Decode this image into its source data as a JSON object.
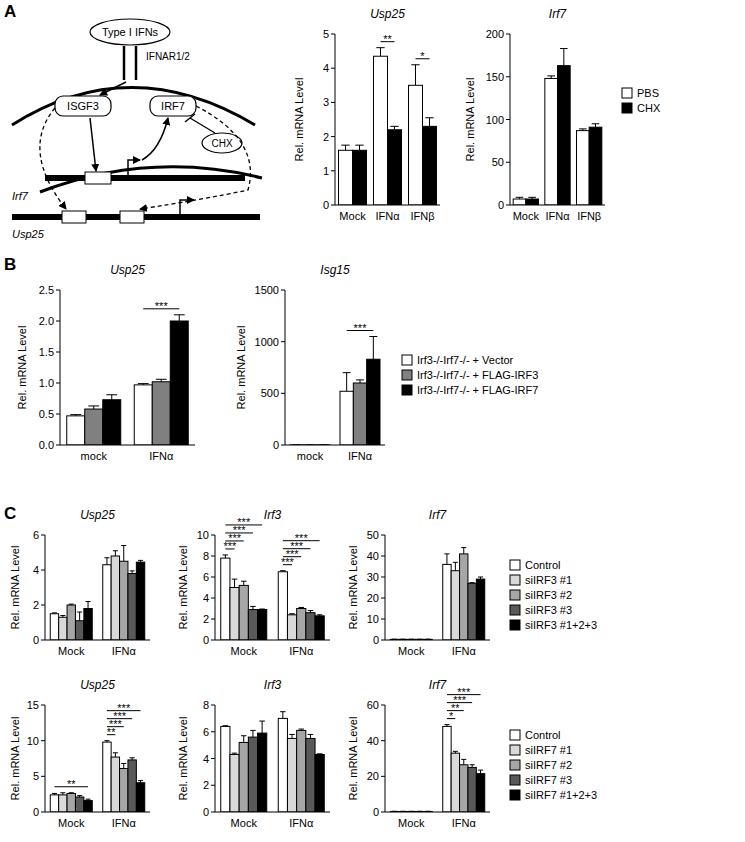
{
  "panels": [
    "A",
    "B",
    "C"
  ],
  "diagram": {
    "nodes": [
      {
        "label": "Type I IFNs"
      },
      {
        "label": "IFNAR1/2"
      },
      {
        "label": "ISGF3"
      },
      {
        "label": "IRF7"
      },
      {
        "label": "CHX"
      },
      {
        "label": "Irf7"
      },
      {
        "label": "Usp25"
      }
    ]
  },
  "chart_data": [
    {
      "type": "bar",
      "title": "Usp25",
      "y_label": "Rel. mRNA Level",
      "categories": [
        "Mock",
        "IFNα",
        "IFNβ"
      ],
      "series": [
        {
          "color": "#ffffff",
          "values": [
            1.6,
            4.35,
            3.5
          ],
          "errors": [
            0.15,
            0.25,
            0.6
          ]
        },
        {
          "color": "#000000",
          "values": [
            1.6,
            2.2,
            2.3
          ],
          "errors": [
            0.15,
            0.1,
            0.25
          ]
        }
      ],
      "ylim": [
        0,
        5
      ],
      "yticks": [
        0,
        1,
        2,
        3,
        4,
        5
      ],
      "annotations": [
        {
          "text": "**",
          "category": 1,
          "between": [
            0,
            1
          ]
        },
        {
          "text": "*",
          "category": 2,
          "between": [
            0,
            1
          ]
        }
      ]
    },
    {
      "type": "bar",
      "title": "Irf7",
      "y_label": "Rel. mRNA Level",
      "categories": [
        "Mock",
        "IFNα",
        "IFNβ"
      ],
      "series": [
        {
          "name": "PBS",
          "color": "#ffffff",
          "values": [
            7,
            148,
            87
          ],
          "errors": [
            2,
            3,
            2
          ]
        },
        {
          "name": "CHX",
          "color": "#000000",
          "values": [
            7,
            163,
            91
          ],
          "errors": [
            2,
            20,
            4
          ]
        }
      ],
      "ylim": [
        0,
        200
      ],
      "yticks": [
        0,
        50,
        100,
        150,
        200
      ],
      "legend": "right"
    },
    {
      "type": "bar",
      "title": "Usp25",
      "y_label": "Rel. mRNA Level",
      "categories": [
        "mock",
        "IFNα"
      ],
      "series": [
        {
          "color": "#ffffff",
          "values": [
            0.47,
            0.97
          ],
          "errors": [
            0.02,
            0.02
          ]
        },
        {
          "color": "#808080",
          "values": [
            0.58,
            1.02
          ],
          "errors": [
            0.05,
            0.04
          ]
        },
        {
          "color": "#000000",
          "values": [
            0.73,
            2.0
          ],
          "errors": [
            0.08,
            0.1
          ]
        }
      ],
      "ylim": [
        0,
        2.5
      ],
      "yticks": [
        {
          "value": 0,
          "label": "0.0"
        },
        0.5,
        {
          "value": 1,
          "label": "1.0"
        },
        1.5,
        {
          "value": 2,
          "label": "2.0"
        },
        2.5
      ],
      "annotations": [
        {
          "text": "***",
          "category": 1,
          "between": [
            0,
            2
          ]
        }
      ]
    },
    {
      "type": "bar",
      "title": "Isg15",
      "y_label": "Rel. mRNA Level",
      "categories": [
        "mock",
        "IFNα"
      ],
      "series": [
        {
          "name": "Irf3-/-Irf7-/- + Vector",
          "color": "#ffffff",
          "values": [
            1,
            520
          ],
          "errors": [
            0,
            180
          ]
        },
        {
          "name": "Irf3-/-Irf7-/- + FLAG-IRF3",
          "color": "#808080",
          "values": [
            1,
            600
          ],
          "errors": [
            0,
            30
          ]
        },
        {
          "name": "Irf3-/-Irf7-/- + FLAG-IRF7",
          "color": "#000000",
          "values": [
            1,
            830
          ],
          "errors": [
            0,
            220
          ]
        }
      ],
      "ylim": [
        0,
        1500
      ],
      "yticks": [
        0,
        500,
        1000,
        1500
      ],
      "legend": "right",
      "annotations": [
        {
          "text": "***",
          "category": 1,
          "between": [
            0,
            2
          ]
        }
      ]
    },
    {
      "type": "bar",
      "title": "Usp25",
      "y_label": "Rel. mRNA Level",
      "categories": [
        "Mock",
        "IFNα"
      ],
      "series": [
        {
          "color": "#ffffff",
          "values": [
            1.5,
            4.3
          ],
          "errors": [
            0.05,
            0.4
          ]
        },
        {
          "color": "#d9d9d9",
          "values": [
            1.3,
            4.8
          ],
          "errors": [
            0.1,
            0.3
          ]
        },
        {
          "color": "#a6a6a6",
          "values": [
            2.0,
            4.5
          ],
          "errors": [
            0.05,
            0.9
          ]
        },
        {
          "color": "#595959",
          "values": [
            1.1,
            3.8
          ],
          "errors": [
            0.5,
            0.15
          ]
        },
        {
          "color": "#000000",
          "values": [
            1.8,
            4.45
          ],
          "errors": [
            0.4,
            0.1
          ]
        }
      ],
      "ylim": [
        0,
        6
      ],
      "yticks": [
        0,
        2,
        4,
        6
      ]
    },
    {
      "type": "bar",
      "title": "Irf3",
      "y_label": "Rel. mRNA Level",
      "categories": [
        "Mock",
        "IFNα"
      ],
      "series": [
        {
          "color": "#ffffff",
          "values": [
            7.8,
            6.5
          ],
          "errors": [
            0.3,
            0.1
          ]
        },
        {
          "color": "#d9d9d9",
          "values": [
            5.0,
            2.4
          ],
          "errors": [
            0.8,
            0.1
          ]
        },
        {
          "color": "#a6a6a6",
          "values": [
            5.2,
            3.0
          ],
          "errors": [
            0.4,
            0.1
          ]
        },
        {
          "color": "#595959",
          "values": [
            2.9,
            2.6
          ],
          "errors": [
            0.3,
            0.2
          ]
        },
        {
          "color": "#000000",
          "values": [
            2.9,
            2.3
          ],
          "errors": [
            0.05,
            0.1
          ]
        }
      ],
      "ylim": [
        0,
        10
      ],
      "yticks": [
        0,
        2,
        4,
        6,
        8,
        10
      ],
      "annotations": [
        {
          "text": "***",
          "category": 0,
          "between": [
            0,
            1
          ]
        },
        {
          "text": "***",
          "category": 0,
          "between": [
            0,
            2
          ]
        },
        {
          "text": "***",
          "category": 0,
          "between": [
            0,
            3
          ]
        },
        {
          "text": "***",
          "category": 0,
          "between": [
            0,
            4
          ]
        },
        {
          "text": "***",
          "category": 1,
          "between": [
            0,
            1
          ]
        },
        {
          "text": "***",
          "category": 1,
          "between": [
            0,
            2
          ]
        },
        {
          "text": "***",
          "category": 1,
          "between": [
            0,
            3
          ]
        },
        {
          "text": "***",
          "category": 1,
          "between": [
            0,
            4
          ]
        }
      ]
    },
    {
      "type": "bar",
      "title": "Irf7",
      "y_label": "Rel. mRNA Level",
      "categories": [
        "Mock",
        "IFNα"
      ],
      "series": [
        {
          "name": "Control",
          "color": "#ffffff",
          "values": [
            0.3,
            36
          ],
          "errors": [
            0.1,
            5
          ]
        },
        {
          "name": "siIRF3 #1",
          "color": "#d9d9d9",
          "values": [
            0.3,
            33
          ],
          "errors": [
            0.1,
            4
          ]
        },
        {
          "name": "siIRF3 #2",
          "color": "#a6a6a6",
          "values": [
            0.3,
            41
          ],
          "errors": [
            0.1,
            3
          ]
        },
        {
          "name": "siIRF3 #3",
          "color": "#595959",
          "values": [
            0.3,
            27
          ],
          "errors": [
            0.1,
            0.3
          ]
        },
        {
          "name": "siIRF3 #1+2+3",
          "color": "#000000",
          "values": [
            0.3,
            29
          ],
          "errors": [
            0.1,
            1
          ]
        }
      ],
      "ylim": [
        0,
        50
      ],
      "yticks": [
        0,
        10,
        20,
        30,
        40,
        50
      ],
      "legend": "right"
    },
    {
      "type": "bar",
      "title": "Usp25",
      "y_label": "Rel. mRNA Level",
      "categories": [
        "Mock",
        "IFNα"
      ],
      "series": [
        {
          "color": "#ffffff",
          "values": [
            2.4,
            9.8
          ],
          "errors": [
            0.2,
            0.2
          ]
        },
        {
          "color": "#d9d9d9",
          "values": [
            2.4,
            7.7
          ],
          "errors": [
            0.3,
            0.6
          ]
        },
        {
          "color": "#a6a6a6",
          "values": [
            2.6,
            6.1
          ],
          "errors": [
            0.1,
            0.7
          ]
        },
        {
          "color": "#595959",
          "values": [
            2.1,
            7.3
          ],
          "errors": [
            0.2,
            0.3
          ]
        },
        {
          "color": "#000000",
          "values": [
            1.6,
            4.1
          ],
          "errors": [
            0.2,
            0.3
          ]
        }
      ],
      "ylim": [
        0,
        15
      ],
      "yticks": [
        0,
        5,
        10,
        15
      ],
      "annotations": [
        {
          "text": "**",
          "category": 0,
          "between": [
            0,
            4
          ]
        },
        {
          "text": "**",
          "category": 1,
          "between": [
            0,
            1
          ]
        },
        {
          "text": "***",
          "category": 1,
          "between": [
            0,
            2
          ]
        },
        {
          "text": "***",
          "category": 1,
          "between": [
            0,
            3
          ]
        },
        {
          "text": "***",
          "category": 1,
          "between": [
            0,
            4
          ]
        }
      ]
    },
    {
      "type": "bar",
      "title": "Irf3",
      "y_label": "Rel. mRNA Level",
      "categories": [
        "Mock",
        "IFNα"
      ],
      "series": [
        {
          "color": "#ffffff",
          "values": [
            6.4,
            7.0
          ],
          "errors": [
            0.05,
            0.5
          ]
        },
        {
          "color": "#d9d9d9",
          "values": [
            4.3,
            5.5
          ],
          "errors": [
            0.1,
            0.3
          ]
        },
        {
          "color": "#a6a6a6",
          "values": [
            5.2,
            6.1
          ],
          "errors": [
            0.5,
            0.1
          ]
        },
        {
          "color": "#595959",
          "values": [
            5.6,
            5.5
          ],
          "errors": [
            0.5,
            0.3
          ]
        },
        {
          "color": "#000000",
          "values": [
            5.9,
            4.3
          ],
          "errors": [
            0.9,
            0.05
          ]
        }
      ],
      "ylim": [
        0,
        8
      ],
      "yticks": [
        0,
        2,
        4,
        6,
        8
      ]
    },
    {
      "type": "bar",
      "title": "Irf7",
      "y_label": "Rel. mRNA Level",
      "categories": [
        "Mock",
        "IFNα"
      ],
      "series": [
        {
          "name": "Control",
          "color": "#ffffff",
          "values": [
            0.3,
            48
          ],
          "errors": [
            0.1,
            1
          ]
        },
        {
          "name": "siIRF7 #1",
          "color": "#d9d9d9",
          "values": [
            0.3,
            33
          ],
          "errors": [
            0.1,
            1
          ]
        },
        {
          "name": "siIRF7 #2",
          "color": "#a6a6a6",
          "values": [
            0.3,
            26.5
          ],
          "errors": [
            0.1,
            3
          ]
        },
        {
          "name": "siIRF7 #3",
          "color": "#595959",
          "values": [
            0.3,
            25
          ],
          "errors": [
            0.1,
            1.5
          ]
        },
        {
          "name": "siIRF7 #1+2+3",
          "color": "#000000",
          "values": [
            0.3,
            21.5
          ],
          "errors": [
            0.1,
            2
          ]
        }
      ],
      "ylim": [
        0,
        60
      ],
      "yticks": [
        0,
        20,
        40,
        60
      ],
      "legend": "right",
      "annotations": [
        {
          "text": "*",
          "category": 1,
          "between": [
            0,
            1
          ]
        },
        {
          "text": "**",
          "category": 1,
          "between": [
            0,
            2
          ]
        },
        {
          "text": "***",
          "category": 1,
          "between": [
            0,
            3
          ]
        },
        {
          "text": "***",
          "category": 1,
          "between": [
            0,
            4
          ]
        }
      ]
    }
  ]
}
